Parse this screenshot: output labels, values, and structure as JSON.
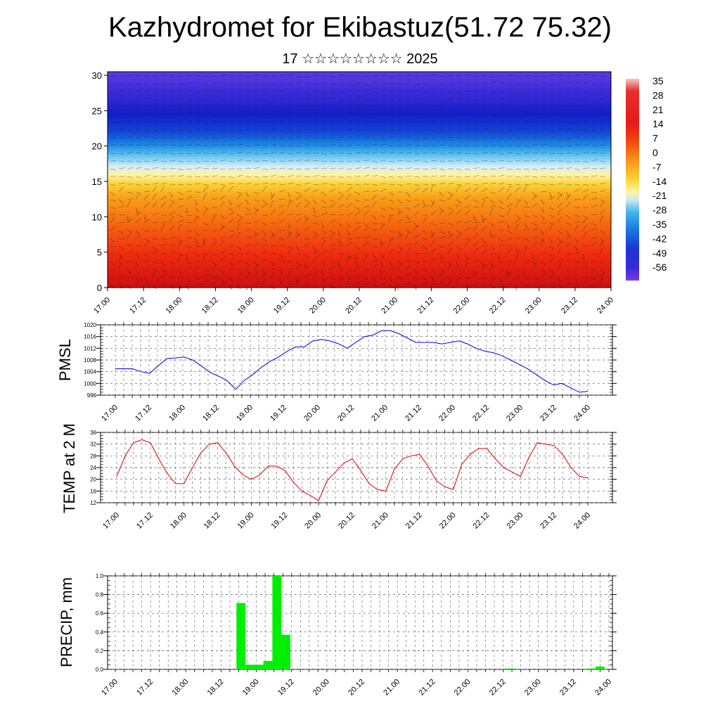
{
  "header": {
    "title": "Kazhydromet for Ekibastuz(51.72 75.32)",
    "subtitle": "17 ☆☆☆☆☆☆☆☆ 2025"
  },
  "colors": {
    "pmsl_line": "#0000dd",
    "temp_line": "#dd0000",
    "precip_bar": "#00ee00",
    "grid": "#555555"
  },
  "chart_data": [
    {
      "type": "heatmap",
      "title": "",
      "xlabel": "",
      "ylabel": "",
      "x_ticks": [
        "17.00",
        "17.12",
        "18.00",
        "18.12",
        "19.00",
        "19.12",
        "20.00",
        "20.12",
        "21.00",
        "21.12",
        "22.00",
        "22.12",
        "23.00",
        "23.12",
        "24.00"
      ],
      "y_ticks": [
        0,
        5,
        10,
        15,
        20,
        25,
        30
      ],
      "ylim": [
        0,
        30.5
      ],
      "colorbar_labels": [
        35,
        28,
        21,
        14,
        7,
        0,
        -7,
        -14,
        -21,
        -28,
        -35,
        -42,
        -49,
        -56
      ],
      "colorscale_description": "temperature with height; red (warm) near surface, yellow ~15, blue/purple (cold) above 22; overlaid wind barbs",
      "temperature_profile": [
        {
          "y": 0,
          "value": 28
        },
        {
          "y": 5,
          "value": 21
        },
        {
          "y": 10,
          "value": 14
        },
        {
          "y": 14,
          "value": 7
        },
        {
          "y": 16,
          "value": -2
        },
        {
          "y": 18,
          "value": -14
        },
        {
          "y": 20,
          "value": -28
        },
        {
          "y": 22,
          "value": -42
        },
        {
          "y": 25,
          "value": -52
        },
        {
          "y": 30,
          "value": -56
        }
      ]
    },
    {
      "type": "line",
      "ylabel": "PMSL",
      "ylim": [
        996,
        1020
      ],
      "y_ticks": [
        996,
        1000,
        1004,
        1008,
        1012,
        1016,
        1020
      ],
      "x_ticks": [
        "17.00",
        "17.12",
        "18.00",
        "18.12",
        "19.00",
        "19.12",
        "20.00",
        "20.12",
        "21.00",
        "21.12",
        "22.00",
        "22.12",
        "23.00",
        "23.12",
        "24.00"
      ],
      "series": [
        {
          "values": [
            1005,
            1005,
            1005,
            1004,
            1003.5,
            1006,
            1008.5,
            1008.7,
            1009,
            1008,
            1006,
            1003.8,
            1002.5,
            1001,
            998,
            1001,
            1003,
            1005.5,
            1007.5,
            1009,
            1011,
            1012.5,
            1012.5,
            1014.5,
            1015,
            1014.5,
            1013.5,
            1012,
            1014,
            1016,
            1016.5,
            1018,
            1018,
            1017,
            1015.5,
            1014,
            1014,
            1014,
            1013.5,
            1014,
            1014.5,
            1013.5,
            1012,
            1011,
            1010.5,
            1009.5,
            1008,
            1006.5,
            1005,
            1003,
            1001,
            999.5,
            1000,
            998.5,
            997,
            997.3
          ]
        }
      ]
    },
    {
      "type": "line",
      "ylabel": "TEMP at 2 M",
      "ylim": [
        12,
        36
      ],
      "y_ticks": [
        12,
        16,
        20,
        24,
        28,
        32,
        36
      ],
      "x_ticks": [
        "17.00",
        "17.12",
        "18.00",
        "18.12",
        "19.00",
        "19.12",
        "20.00",
        "20.12",
        "21.00",
        "21.12",
        "22.00",
        "22.12",
        "23.00",
        "23.12",
        "24.00"
      ],
      "series": [
        {
          "values": [
            21,
            28,
            32.5,
            33.5,
            32.5,
            27,
            22,
            18.5,
            18.5,
            24,
            29,
            32,
            32.5,
            29,
            24.5,
            21.5,
            20,
            21.5,
            24.5,
            24.5,
            23,
            19,
            16,
            14.5,
            12.7,
            19.5,
            22.5,
            25.5,
            27,
            23,
            18.5,
            16.5,
            16,
            23.5,
            27,
            28,
            28.5,
            24.5,
            19.5,
            17.5,
            16.5,
            25,
            28.5,
            30.5,
            30.5,
            27,
            24,
            22.5,
            21,
            27.5,
            32.5,
            32,
            31.5,
            28.5,
            24,
            21,
            20.5
          ]
        }
      ]
    },
    {
      "type": "bar",
      "ylabel": "PRECIP, mm",
      "ylim": [
        0,
        1.0
      ],
      "y_ticks": [
        "0.0",
        "0.2",
        "0.4",
        "0.6",
        "0.8",
        "1.0"
      ],
      "x_ticks": [
        "17.00",
        "17.12",
        "18.00",
        "18.12",
        "19.00",
        "19.12",
        "20.00",
        "20.12",
        "21.00",
        "21.12",
        "22.00",
        "22.12",
        "23.00",
        "23.12",
        "24.00"
      ],
      "series": [
        {
          "values": [
            0,
            0,
            0,
            0,
            0,
            0,
            0,
            0,
            0,
            0,
            0,
            0,
            0,
            0,
            0.71,
            0.05,
            0.05,
            0.09,
            1.0,
            0.37,
            0,
            0,
            0,
            0,
            0,
            0,
            0,
            0,
            0,
            0,
            0,
            0,
            0,
            0,
            0,
            0,
            0,
            0,
            0,
            0,
            0,
            0,
            0,
            0,
            0.01,
            0,
            0,
            0,
            0,
            0,
            0,
            0,
            0,
            0.01,
            0.03,
            0
          ]
        }
      ]
    }
  ]
}
